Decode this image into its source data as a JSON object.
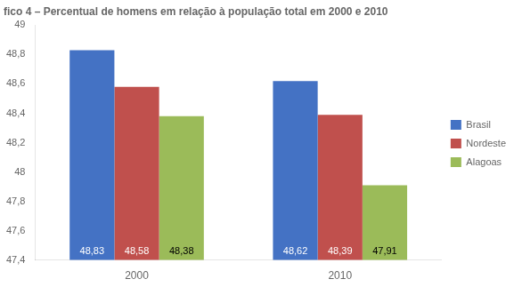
{
  "chart_data": {
    "type": "bar",
    "title": "fico 4 – Percentual de homens em relação à população total em 2000 e 2010",
    "categories": [
      "2000",
      "2010"
    ],
    "series": [
      {
        "name": "Brasil",
        "color": "#4472C4",
        "values": [
          48.83,
          48.62
        ],
        "value_labels": [
          "48,83",
          "48,62"
        ]
      },
      {
        "name": "Nordeste",
        "color": "#C0504D",
        "values": [
          48.58,
          48.39
        ],
        "value_labels": [
          "48,58",
          "48,39"
        ]
      },
      {
        "name": "Alagoas",
        "color": "#9BBB59",
        "values": [
          48.38,
          47.91
        ],
        "value_labels": [
          "48,38",
          "47,91"
        ]
      }
    ],
    "ylim": [
      47.4,
      49
    ],
    "yticks": [
      {
        "value": 47.4,
        "label": "47,4"
      },
      {
        "value": 47.6,
        "label": "47,6"
      },
      {
        "value": 47.8,
        "label": "47,8"
      },
      48,
      {
        "value": 48.2,
        "label": "48,2"
      },
      {
        "value": 48.4,
        "label": "48,4"
      },
      {
        "value": 48.6,
        "label": "48,6"
      },
      {
        "value": 48.8,
        "label": "48,8"
      },
      49
    ],
    "grid": false,
    "legend": "right",
    "data_labels": true
  }
}
